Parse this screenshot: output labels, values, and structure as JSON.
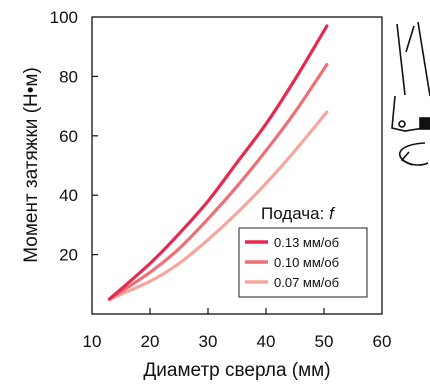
{
  "chart_data": {
    "type": "line",
    "xlabel": "Диаметр сверла (мм)",
    "ylabel": "Момент затяжки (Н•м)",
    "xlim": [
      10,
      60
    ],
    "ylim": [
      0,
      100
    ],
    "xticks": [
      "10",
      "20",
      "30",
      "40",
      "50",
      "60"
    ],
    "yticks": [
      "20",
      "40",
      "60",
      "80",
      "100"
    ],
    "legend_title": "Подача:",
    "legend_symbol": "f",
    "legend_position": "bottom-right",
    "grid": false,
    "series": [
      {
        "name": "0.13 мм/об",
        "color": "#e8294f",
        "x": [
          13,
          20,
          25,
          30,
          35,
          40,
          45,
          50.5
        ],
        "y": [
          5,
          17,
          27,
          38,
          51,
          64,
          79,
          97
        ]
      },
      {
        "name": "0.10 мм/об",
        "color": "#ee6f76",
        "x": [
          13,
          20,
          25,
          30,
          35,
          40,
          45,
          50.5
        ],
        "y": [
          5,
          14,
          22,
          32,
          43,
          55,
          68,
          84
        ]
      },
      {
        "name": "0.07 мм/об",
        "color": "#f5a79f",
        "x": [
          13,
          20,
          25,
          30,
          35,
          40,
          45,
          50.5
        ],
        "y": [
          5,
          11,
          17,
          25,
          34,
          44,
          55,
          68
        ]
      }
    ]
  }
}
